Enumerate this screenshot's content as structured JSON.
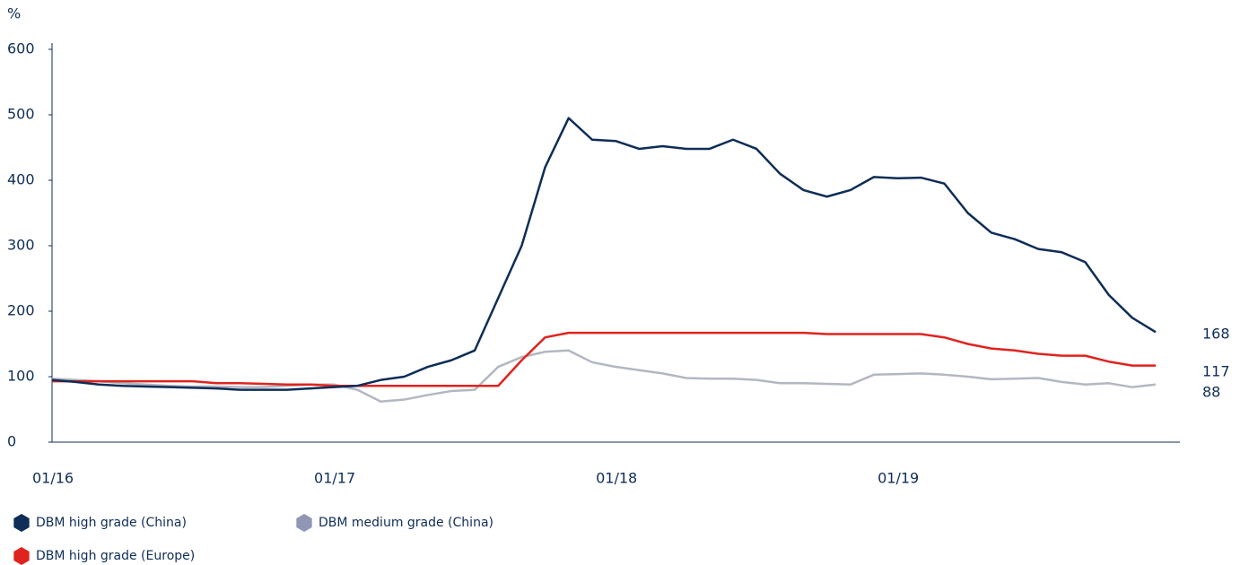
{
  "chart_data": {
    "type": "line",
    "y_label": "%",
    "categories": [
      "01/16",
      "02/16",
      "03/16",
      "04/16",
      "05/16",
      "06/16",
      "07/16",
      "08/16",
      "09/16",
      "10/16",
      "11/16",
      "12/16",
      "01/17",
      "02/17",
      "03/17",
      "04/17",
      "05/17",
      "06/17",
      "07/17",
      "08/17",
      "09/17",
      "10/17",
      "11/17",
      "12/17",
      "01/18",
      "02/18",
      "03/18",
      "04/18",
      "05/18",
      "06/18",
      "07/18",
      "08/18",
      "09/18",
      "10/18",
      "11/18",
      "12/18",
      "01/19",
      "02/19",
      "03/19",
      "04/19",
      "05/19",
      "06/19",
      "07/19",
      "08/19",
      "09/19",
      "10/19",
      "11/19",
      "12/19"
    ],
    "xtick_every": 12,
    "series": [
      {
        "name": "DBM high grade (China)",
        "color": "#0e2d57",
        "values": [
          95,
          92,
          88,
          86,
          85,
          84,
          83,
          82,
          80,
          80,
          80,
          82,
          84,
          86,
          95,
          100,
          115,
          125,
          140,
          220,
          300,
          420,
          495,
          462,
          460,
          448,
          452,
          448,
          448,
          462,
          448,
          410,
          385,
          375,
          385,
          405,
          403,
          404,
          395,
          350,
          320,
          310,
          295,
          290,
          275,
          225,
          190,
          168
        ]
      },
      {
        "name": "DBM medium grade (China)",
        "color": "#b3b7c2",
        "values": [
          97,
          95,
          93,
          90,
          88,
          86,
          85,
          85,
          84,
          84,
          86,
          88,
          88,
          80,
          62,
          65,
          72,
          78,
          80,
          115,
          130,
          138,
          140,
          122,
          115,
          110,
          105,
          98,
          97,
          97,
          95,
          90,
          90,
          89,
          88,
          103,
          104,
          105,
          103,
          100,
          96,
          97,
          98,
          92,
          88,
          90,
          84,
          88
        ]
      },
      {
        "name": "DBM high grade (Europe)",
        "color": "#e0231e",
        "values": [
          93,
          93,
          93,
          93,
          93,
          93,
          93,
          90,
          90,
          89,
          88,
          88,
          86,
          86,
          86,
          86,
          86,
          86,
          86,
          86,
          125,
          160,
          167,
          167,
          167,
          167,
          167,
          167,
          167,
          167,
          167,
          167,
          167,
          165,
          165,
          165,
          165,
          165,
          160,
          150,
          143,
          140,
          135,
          132,
          132,
          123,
          117,
          117
        ]
      }
    ],
    "ylim": [
      0,
      600
    ],
    "yticks": [
      0,
      100,
      200,
      300,
      400,
      500,
      600
    ],
    "grid": false
  }
}
